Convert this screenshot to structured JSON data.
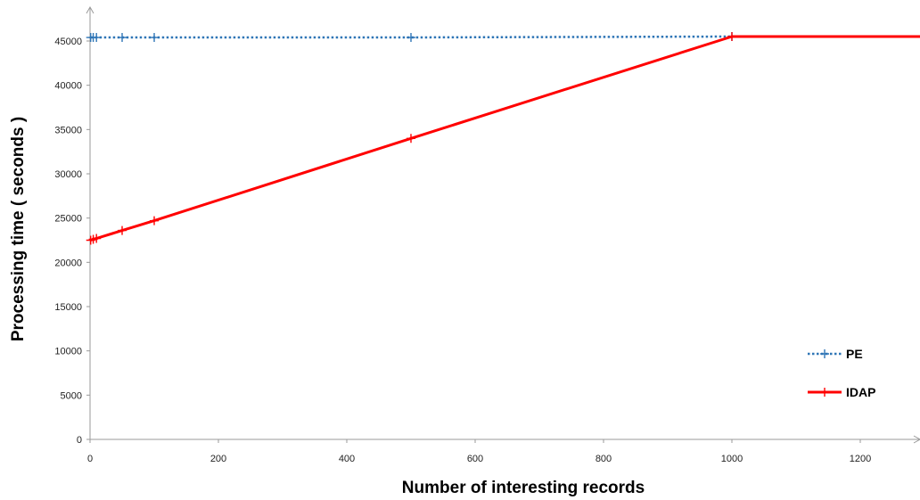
{
  "chart_data": {
    "type": "line",
    "title": "",
    "xlabel": "Number of interesting records",
    "ylabel": "Processing time ( seconds )",
    "xlim": [
      0,
      1290
    ],
    "ylim": [
      0,
      50000
    ],
    "xticks": [
      0,
      200,
      400,
      600,
      800,
      1000,
      1200
    ],
    "yticks": [
      0,
      5000,
      10000,
      15000,
      20000,
      25000,
      30000,
      35000,
      40000,
      45000
    ],
    "grid": false,
    "legend_position": "bottom-right",
    "series": [
      {
        "name": "PE",
        "color": "#2e75b6",
        "line_style": "dotted",
        "marker": "plus",
        "x": [
          1,
          5,
          10,
          50,
          100,
          500,
          1000,
          1300
        ],
        "y": [
          45400,
          45400,
          45400,
          45400,
          45400,
          45400,
          45500,
          45500
        ]
      },
      {
        "name": "IDAP",
        "color": "#ff0000",
        "line_style": "solid",
        "marker": "plus",
        "x": [
          1,
          5,
          10,
          50,
          100,
          500,
          1000,
          1300
        ],
        "y": [
          22500,
          22600,
          22700,
          23600,
          24700,
          34000,
          45500,
          45500
        ]
      }
    ]
  }
}
